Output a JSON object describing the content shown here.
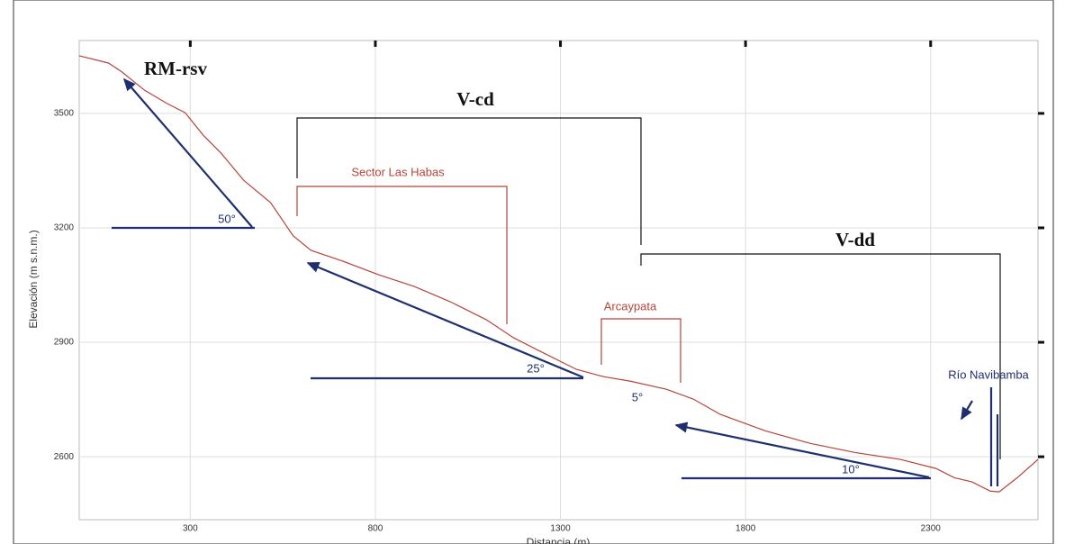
{
  "chart_data": {
    "type": "line",
    "x_label": "Distancia (m)",
    "y_label": "Elevación (m s.n.m.)",
    "x": [
      0,
      79,
      115,
      176,
      237,
      286,
      335,
      383,
      444,
      517,
      578,
      626,
      711,
      809,
      906,
      1003,
      1100,
      1173,
      1246,
      1343,
      1416,
      1489,
      1586,
      1659,
      1732,
      1853,
      1975,
      2096,
      2218,
      2315,
      2364,
      2412,
      2461,
      2485,
      2534,
      2590
    ],
    "values": [
      3651,
      3632,
      3609,
      3561,
      3526,
      3502,
      3443,
      3396,
      3325,
      3266,
      3179,
      3141,
      3113,
      3077,
      3046,
      3006,
      2959,
      2912,
      2876,
      2829,
      2810,
      2798,
      2777,
      2751,
      2711,
      2668,
      2635,
      2611,
      2593,
      2569,
      2545,
      2534,
      2510,
      2508,
      2545,
      2593
    ],
    "color": "#b5443a",
    "xlim": [
      0,
      2590
    ],
    "xticks": [
      300,
      800,
      1300,
      1800,
      2300
    ],
    "ylim": [
      2435,
      3691
    ],
    "yticks": [
      2600,
      2900,
      3200,
      3500
    ],
    "grid": true,
    "annotations": [
      "RM-rsv",
      "V-cd",
      "V-dd",
      "Sector Las Habas",
      "Arcaypata",
      "Río Navibamba",
      "50°",
      "25°",
      "5°",
      "10°"
    ]
  }
}
